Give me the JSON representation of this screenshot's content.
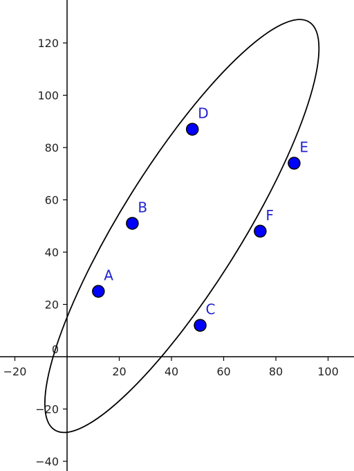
{
  "axes": {
    "x_ticks": [
      {
        "value": -20,
        "label": "−20"
      },
      {
        "value": 0,
        "label": "0"
      },
      {
        "value": 20,
        "label": "20"
      },
      {
        "value": 40,
        "label": "40"
      },
      {
        "value": 60,
        "label": "60"
      },
      {
        "value": 80,
        "label": "80"
      },
      {
        "value": 100,
        "label": "100"
      }
    ],
    "y_ticks": [
      {
        "value": -40,
        "label": "−40"
      },
      {
        "value": -20,
        "label": "−20"
      },
      {
        "value": 0,
        "label": "0"
      },
      {
        "value": 20,
        "label": "20"
      },
      {
        "value": 40,
        "label": "40"
      },
      {
        "value": 60,
        "label": "60"
      },
      {
        "value": 80,
        "label": "80"
      },
      {
        "value": 100,
        "label": "100"
      },
      {
        "value": 120,
        "label": "120"
      }
    ]
  },
  "points": [
    {
      "label": "A",
      "x": 12,
      "y": 25
    },
    {
      "label": "B",
      "x": 25,
      "y": 51
    },
    {
      "label": "C",
      "x": 51,
      "y": 12
    },
    {
      "label": "D",
      "x": 48,
      "y": 87
    },
    {
      "label": "E",
      "x": 87,
      "y": 74
    },
    {
      "label": "F",
      "x": 74,
      "y": 48
    }
  ],
  "ellipse": {
    "center": [
      44,
      50
    ],
    "semi_major": 92.0,
    "semi_minor": 23.0,
    "angle_deg": 58
  },
  "colors": {
    "point_fill": "#0000ff",
    "point_stroke": "#000000",
    "label": "#2020d0",
    "curve": "#000000",
    "axis": "#000000"
  }
}
